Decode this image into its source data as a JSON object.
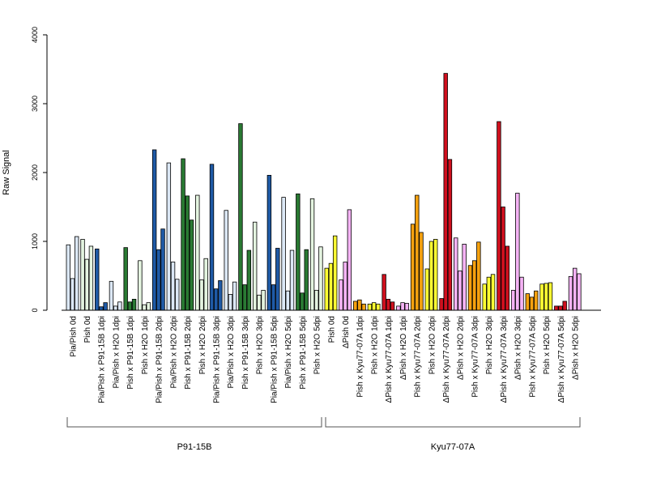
{
  "chart_data": {
    "type": "bar",
    "ylabel": "Raw Signal",
    "ylim": [
      0,
      4000
    ],
    "yticks": [
      0,
      1000,
      2000,
      3000,
      4000
    ],
    "groups_label": [
      "P91-15B",
      "Kyu77-07A"
    ],
    "palette": {
      "lightblue": "#dce8f6",
      "blue": "#1f5aa6",
      "lightgreen": "#e4f4e0",
      "green": "#2a7a33",
      "yellow": "#ffff33",
      "orange": "#f5a10f",
      "red": "#d0101e",
      "pink": "#f5b3f5"
    },
    "categories": [
      {
        "label": "Pia/Pish 0d",
        "color": "lightblue",
        "values": [
          950,
          460,
          1070
        ]
      },
      {
        "label": "Pish 0d",
        "color": "lightgreen",
        "values": [
          1030,
          740,
          930
        ]
      },
      {
        "label": "Pia/Pish x P91-15B 1dpi",
        "color": "blue",
        "values": [
          890,
          50,
          110
        ]
      },
      {
        "label": "Pia/Pish x H2O 1dpi",
        "color": "lightblue",
        "values": [
          420,
          60,
          120
        ]
      },
      {
        "label": "Pish x P91-15B 1dpi",
        "color": "green",
        "values": [
          910,
          120,
          160
        ]
      },
      {
        "label": "Pish x H2O 1dpi",
        "color": "lightgreen",
        "values": [
          720,
          80,
          110
        ]
      },
      {
        "label": "Pia/Pish x P91-15B 2dpi",
        "color": "blue",
        "values": [
          2330,
          880,
          1180
        ]
      },
      {
        "label": "Pia/Pish x H2O 2dpi",
        "color": "lightblue",
        "values": [
          2140,
          700,
          450
        ]
      },
      {
        "label": "Pish x P91-15B 2dpi",
        "color": "green",
        "values": [
          2200,
          1660,
          1310
        ]
      },
      {
        "label": "Pish x H2O 2dpi",
        "color": "lightgreen",
        "values": [
          1670,
          440,
          750
        ]
      },
      {
        "label": "Pia/Pish x P91-15B 3dpi",
        "color": "blue",
        "values": [
          2120,
          310,
          430
        ]
      },
      {
        "label": "Pia/Pish x H2O 3dpi",
        "color": "lightblue",
        "values": [
          1450,
          230,
          410
        ]
      },
      {
        "label": "Pish x P91-15B 3dpi",
        "color": "green",
        "values": [
          2710,
          370,
          870
        ]
      },
      {
        "label": "Pish x H2O 3dpi",
        "color": "lightgreen",
        "values": [
          1280,
          220,
          290
        ]
      },
      {
        "label": "Pia/Pish x P91-15B 5dpi",
        "color": "blue",
        "values": [
          1960,
          370,
          900
        ]
      },
      {
        "label": "Pia/Pish x H2O 5dpi",
        "color": "lightblue",
        "values": [
          1640,
          280,
          870
        ]
      },
      {
        "label": "Pish x P91-15B 5dpi",
        "color": "green",
        "values": [
          1690,
          250,
          880
        ]
      },
      {
        "label": "Pish x H2O 5dpi",
        "color": "lightgreen",
        "values": [
          1620,
          290,
          920
        ]
      },
      {
        "label": "Pish 0d",
        "color": "yellow",
        "values": [
          610,
          680,
          1080
        ]
      },
      {
        "label": "ΔPish 0d",
        "color": "pink",
        "values": [
          440,
          700,
          1460
        ]
      },
      {
        "label": "Pish x Kyu77-07A 1dpi",
        "color": "orange",
        "values": [
          130,
          150,
          90
        ]
      },
      {
        "label": "Pish x H2O 1dpi",
        "color": "yellow",
        "values": [
          90,
          110,
          90
        ]
      },
      {
        "label": "ΔPish x Kyu77-07A 1dpi",
        "color": "red",
        "values": [
          520,
          160,
          120
        ]
      },
      {
        "label": "ΔPish x H2O 1dpi",
        "color": "pink",
        "values": [
          60,
          110,
          100
        ]
      },
      {
        "label": "Pish x Kyu77-07A 2dpi",
        "color": "orange",
        "values": [
          1250,
          1670,
          1130
        ]
      },
      {
        "label": "Pish x H2O 2dpi",
        "color": "yellow",
        "values": [
          600,
          1000,
          1030
        ]
      },
      {
        "label": "ΔPish x Kyu77-07A 2dpi",
        "color": "red",
        "values": [
          170,
          3440,
          2190
        ]
      },
      {
        "label": "ΔPish x H2O 2dpi",
        "color": "pink",
        "values": [
          1050,
          570,
          960
        ]
      },
      {
        "label": "Pish x Kyu77-07A 3dpi",
        "color": "orange",
        "values": [
          650,
          720,
          990
        ]
      },
      {
        "label": "Pish x H2O 3dpi",
        "color": "yellow",
        "values": [
          380,
          480,
          520
        ]
      },
      {
        "label": "ΔPish x Kyu77-07A 3dpi",
        "color": "red",
        "values": [
          2740,
          1500,
          930
        ]
      },
      {
        "label": "ΔPish x H2O 3dpi",
        "color": "pink",
        "values": [
          290,
          1700,
          480
        ]
      },
      {
        "label": "Pish x Kyu77-07A 5dpi",
        "color": "orange",
        "values": [
          240,
          190,
          280
        ]
      },
      {
        "label": "Pish x H2O 5dpi",
        "color": "yellow",
        "values": [
          380,
          390,
          400
        ]
      },
      {
        "label": "ΔPish x Kyu77-07A 5dpi",
        "color": "red",
        "values": [
          60,
          60,
          130
        ]
      },
      {
        "label": "ΔPish x H2O 5dpi",
        "color": "pink",
        "values": [
          490,
          610,
          530
        ]
      }
    ],
    "group_ranges": [
      [
        0,
        17
      ],
      [
        18,
        35
      ]
    ],
    "grid": false
  }
}
